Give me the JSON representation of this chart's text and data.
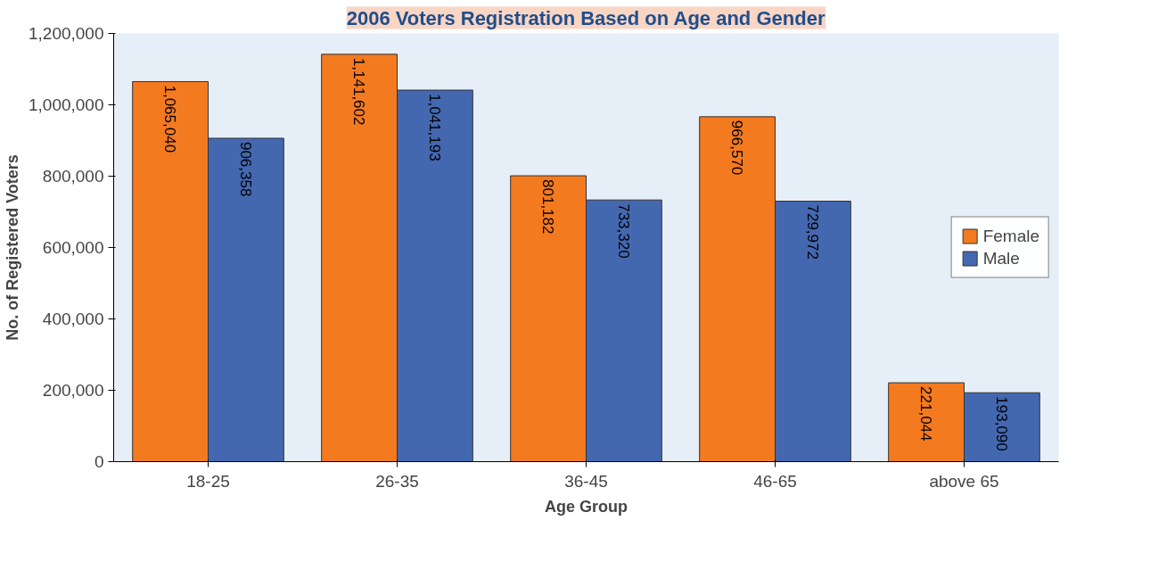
{
  "chart_data": {
    "type": "bar",
    "title": "2006 Voters Registration Based on Age and Gender",
    "xlabel": "Age Group",
    "ylabel": "No. of Registered Voters",
    "categories": [
      "18-25",
      "26-35",
      "36-45",
      "46-65",
      "above 65"
    ],
    "series": [
      {
        "name": "Female",
        "color": "#f47a20",
        "values": [
          1065040,
          1141602,
          801182,
          966570,
          221044
        ],
        "value_labels": [
          "1,065,040",
          "1,141,602",
          "801,182",
          "966,570",
          "221,044"
        ]
      },
      {
        "name": "Male",
        "color": "#4468b0",
        "values": [
          906358,
          1041193,
          733320,
          729972,
          193090
        ],
        "value_labels": [
          "906,358",
          "1,041,193",
          "733,320",
          "729,972",
          "193,090"
        ]
      }
    ],
    "ylim": [
      0,
      1200000
    ],
    "yticks": [
      0,
      {
        "value": 200000,
        "label": "200,000"
      },
      {
        "value": 400000,
        "label": "400,000"
      },
      {
        "value": 600000,
        "label": "600,000"
      },
      {
        "value": 800000,
        "label": "800,000"
      },
      {
        "value": 1000000,
        "label": "1,000,000"
      },
      {
        "value": 1200000,
        "label": "1,200,000"
      }
    ],
    "legend": "right"
  }
}
